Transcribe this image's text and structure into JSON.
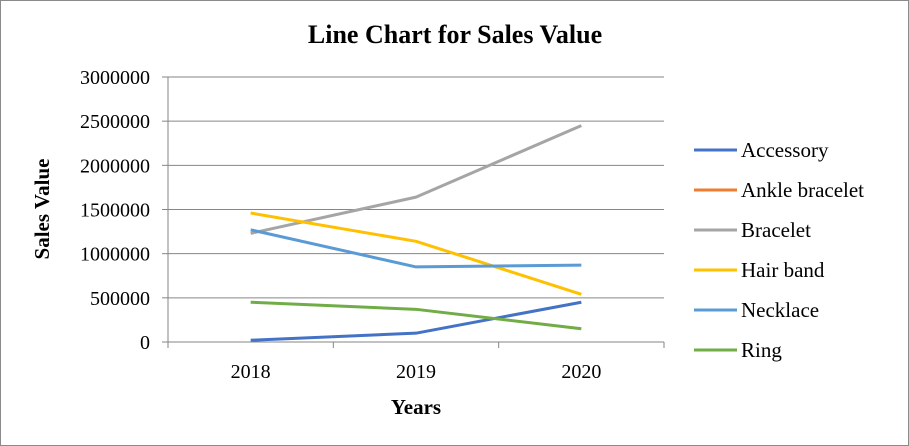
{
  "chart_data": {
    "type": "line",
    "title": "Line Chart for Sales Value",
    "xlabel": "Years",
    "ylabel": "Sales Value",
    "categories": [
      "2018",
      "2019",
      "2020"
    ],
    "ylim": [
      0,
      3000000
    ],
    "yticks": [
      0,
      500000,
      1000000,
      1500000,
      2000000,
      2500000,
      3000000
    ],
    "ytick_labels": [
      "0",
      "500000",
      "1000000",
      "1500000",
      "2000000",
      "2500000",
      "3000000"
    ],
    "grid": true,
    "legend_position": "right",
    "series": [
      {
        "name": "Accessory",
        "color": "#4472C4",
        "values": [
          20000,
          100000,
          450000
        ]
      },
      {
        "name": "Ankle bracelet",
        "color": "#ED7D31",
        "values": [
          null,
          null,
          null
        ]
      },
      {
        "name": "Bracelet",
        "color": "#A5A5A5",
        "values": [
          1230000,
          1640000,
          2450000
        ]
      },
      {
        "name": "Hair band",
        "color": "#FFC000",
        "values": [
          1460000,
          1140000,
          540000
        ]
      },
      {
        "name": "Necklace",
        "color": "#5B9BD5",
        "values": [
          1270000,
          850000,
          870000
        ]
      },
      {
        "name": "Ring",
        "color": "#70AD47",
        "values": [
          450000,
          370000,
          150000
        ]
      }
    ]
  }
}
